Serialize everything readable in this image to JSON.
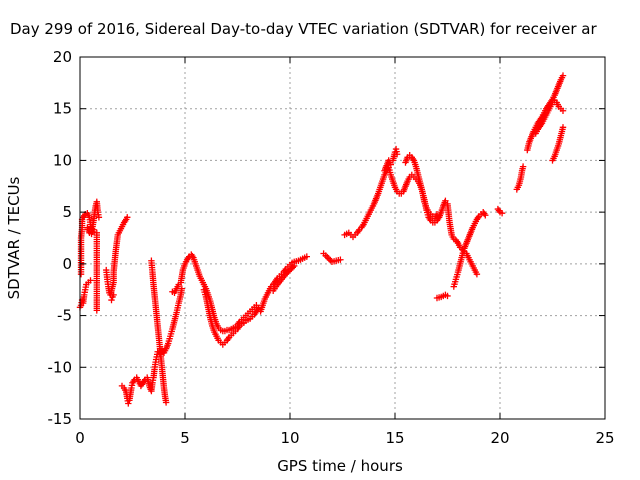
{
  "chart_data": {
    "type": "scatter",
    "title": "Day 299 of 2016, Sidereal Day-to-day VTEC variation (SDTVAR) for receiver ar",
    "xlabel": "GPS time / hours",
    "ylabel": "SDTVAR / TECUs",
    "xlim": [
      0,
      25
    ],
    "ylim": [
      -15,
      20
    ],
    "xticks": [
      0,
      5,
      10,
      15,
      20,
      25
    ],
    "yticks": [
      -15,
      -10,
      -5,
      0,
      5,
      10,
      15,
      20
    ],
    "grid": true,
    "marker": "+",
    "color": "#ff0000",
    "segments": [
      [
        [
          0.0,
          -4.2
        ],
        [
          0.05,
          -4.0
        ],
        [
          0.1,
          -3.5
        ],
        [
          0.15,
          -3.8
        ],
        [
          0.2,
          -3.0
        ],
        [
          0.25,
          -2.5
        ],
        [
          0.3,
          -2.0
        ],
        [
          0.4,
          -1.8
        ],
        [
          0.5,
          -1.6
        ]
      ],
      [
        [
          0.05,
          -1.0
        ],
        [
          0.05,
          1.0
        ],
        [
          0.05,
          2.5
        ],
        [
          0.1,
          3.5
        ],
        [
          0.1,
          4.3
        ]
      ],
      [
        [
          0.15,
          4.5
        ],
        [
          0.25,
          4.8
        ],
        [
          0.35,
          4.9
        ],
        [
          0.45,
          4.5
        ],
        [
          0.5,
          3.8
        ],
        [
          0.55,
          3.2
        ],
        [
          0.6,
          3.6
        ],
        [
          0.65,
          4.2
        ],
        [
          0.7,
          5.0
        ],
        [
          0.75,
          5.6
        ],
        [
          0.8,
          6.0
        ],
        [
          0.85,
          5.0
        ],
        [
          0.9,
          4.5
        ]
      ],
      [
        [
          0.35,
          3.5
        ],
        [
          0.45,
          3.0
        ],
        [
          0.55,
          2.9
        ],
        [
          0.65,
          3.3
        ]
      ],
      [
        [
          0.8,
          3.0
        ],
        [
          0.8,
          1.5
        ],
        [
          0.8,
          0.2
        ],
        [
          0.8,
          -1.0
        ],
        [
          0.8,
          -3.5
        ],
        [
          0.8,
          -4.5
        ]
      ],
      [
        [
          1.25,
          -0.6
        ],
        [
          1.3,
          -1.5
        ],
        [
          1.35,
          -2.2
        ],
        [
          1.4,
          -2.8
        ],
        [
          1.45,
          -3.0
        ],
        [
          1.5,
          -2.6
        ],
        [
          1.55,
          -2.2
        ],
        [
          1.6,
          -1.8
        ],
        [
          1.6,
          -0.8
        ],
        [
          1.65,
          0.2
        ],
        [
          1.7,
          1.2
        ],
        [
          1.75,
          2.0
        ],
        [
          1.8,
          2.8
        ],
        [
          1.9,
          3.2
        ],
        [
          2.0,
          3.6
        ],
        [
          2.1,
          4.0
        ],
        [
          2.2,
          4.3
        ],
        [
          2.25,
          4.5
        ]
      ],
      [
        [
          1.5,
          -3.5
        ],
        [
          1.55,
          -3.2
        ],
        [
          1.6,
          -3.0
        ]
      ],
      [
        [
          2.0,
          -11.8
        ],
        [
          2.1,
          -12.0
        ],
        [
          2.2,
          -12.4
        ],
        [
          2.25,
          -13.0
        ],
        [
          2.3,
          -13.5
        ],
        [
          2.35,
          -13.2
        ],
        [
          2.4,
          -12.6
        ],
        [
          2.45,
          -12.0
        ],
        [
          2.5,
          -11.5
        ],
        [
          2.6,
          -11.2
        ],
        [
          2.7,
          -11.0
        ],
        [
          2.8,
          -11.4
        ],
        [
          2.9,
          -11.8
        ],
        [
          3.0,
          -11.5
        ],
        [
          3.1,
          -11.2
        ],
        [
          3.2,
          -11.0
        ],
        [
          3.3,
          -11.8
        ],
        [
          3.4,
          -12.3
        ],
        [
          3.45,
          -11.5
        ],
        [
          3.5,
          -11.0
        ],
        [
          3.55,
          -10.2
        ],
        [
          3.6,
          -9.5
        ],
        [
          3.65,
          -9.0
        ],
        [
          3.7,
          -8.5
        ],
        [
          3.8,
          -8.7
        ],
        [
          3.9,
          -8.3
        ],
        [
          4.0,
          -8.6
        ],
        [
          4.1,
          -8.2
        ],
        [
          4.2,
          -7.7
        ],
        [
          4.3,
          -7.0
        ],
        [
          4.4,
          -6.3
        ],
        [
          4.5,
          -5.5
        ],
        [
          4.6,
          -4.7
        ],
        [
          4.7,
          -3.8
        ],
        [
          4.8,
          -3.0
        ],
        [
          4.85,
          -2.4
        ]
      ],
      [
        [
          3.4,
          0.3
        ],
        [
          3.45,
          -0.8
        ],
        [
          3.5,
          -2.0
        ],
        [
          3.55,
          -3.0
        ],
        [
          3.6,
          -4.0
        ],
        [
          3.65,
          -5.0
        ],
        [
          3.7,
          -6.0
        ],
        [
          3.75,
          -7.0
        ],
        [
          3.8,
          -8.0
        ],
        [
          3.85,
          -9.0
        ],
        [
          3.9,
          -10.0
        ],
        [
          3.95,
          -11.0
        ],
        [
          4.0,
          -12.0
        ],
        [
          4.05,
          -12.8
        ],
        [
          4.1,
          -13.4
        ]
      ],
      [
        [
          4.4,
          -2.7
        ],
        [
          4.5,
          -2.8
        ],
        [
          4.6,
          -2.4
        ],
        [
          4.7,
          -2.0
        ],
        [
          4.8,
          -1.8
        ],
        [
          4.9,
          -0.6
        ],
        [
          5.0,
          0.0
        ],
        [
          5.1,
          0.4
        ],
        [
          5.2,
          0.7
        ],
        [
          5.3,
          0.9
        ],
        [
          5.4,
          0.6
        ],
        [
          5.5,
          0.0
        ],
        [
          5.6,
          -0.6
        ],
        [
          5.7,
          -1.2
        ],
        [
          5.8,
          -1.6
        ],
        [
          5.9,
          -2.0
        ],
        [
          6.0,
          -2.4
        ],
        [
          6.1,
          -3.0
        ],
        [
          6.2,
          -3.6
        ],
        [
          6.3,
          -4.4
        ],
        [
          6.4,
          -5.2
        ],
        [
          6.5,
          -5.8
        ],
        [
          6.6,
          -6.2
        ],
        [
          6.7,
          -6.4
        ],
        [
          6.8,
          -6.5
        ],
        [
          6.9,
          -6.5
        ],
        [
          7.0,
          -6.4
        ],
        [
          7.1,
          -6.4
        ],
        [
          7.2,
          -6.3
        ],
        [
          7.3,
          -6.2
        ],
        [
          7.4,
          -6.1
        ],
        [
          7.5,
          -5.9
        ],
        [
          7.6,
          -5.6
        ],
        [
          7.7,
          -5.4
        ],
        [
          7.8,
          -5.2
        ],
        [
          7.9,
          -5.0
        ],
        [
          8.0,
          -4.8
        ],
        [
          8.1,
          -4.6
        ],
        [
          8.2,
          -4.4
        ],
        [
          8.3,
          -4.2
        ],
        [
          8.4,
          -4.0
        ]
      ],
      [
        [
          5.9,
          -2.5
        ],
        [
          6.0,
          -3.2
        ],
        [
          6.1,
          -4.2
        ],
        [
          6.2,
          -5.2
        ],
        [
          6.3,
          -6.0
        ],
        [
          6.4,
          -6.6
        ],
        [
          6.5,
          -7.0
        ],
        [
          6.6,
          -7.4
        ],
        [
          6.7,
          -7.6
        ],
        [
          6.8,
          -7.8
        ],
        [
          6.9,
          -7.6
        ],
        [
          7.0,
          -7.4
        ],
        [
          7.1,
          -7.1
        ],
        [
          7.2,
          -6.9
        ],
        [
          7.3,
          -6.7
        ],
        [
          7.4,
          -6.5
        ],
        [
          7.5,
          -6.3
        ],
        [
          7.6,
          -6.0
        ],
        [
          7.7,
          -5.8
        ],
        [
          7.8,
          -5.7
        ],
        [
          7.9,
          -5.5
        ],
        [
          8.0,
          -5.4
        ],
        [
          8.1,
          -5.3
        ],
        [
          8.2,
          -5.1
        ],
        [
          8.3,
          -4.9
        ],
        [
          8.4,
          -4.6
        ],
        [
          8.5,
          -4.3
        ]
      ],
      [
        [
          8.6,
          -4.6
        ],
        [
          8.7,
          -4.0
        ],
        [
          8.8,
          -3.4
        ],
        [
          8.9,
          -3.0
        ],
        [
          9.0,
          -2.6
        ],
        [
          9.1,
          -2.2
        ],
        [
          9.2,
          -2.0
        ],
        [
          9.3,
          -1.7
        ],
        [
          9.4,
          -1.4
        ],
        [
          9.5,
          -1.2
        ],
        [
          9.6,
          -1.0
        ],
        [
          9.7,
          -0.8
        ],
        [
          9.8,
          -0.5
        ],
        [
          9.9,
          -0.3
        ],
        [
          10.0,
          -0.1
        ],
        [
          10.1,
          0.1
        ],
        [
          10.2,
          0.2
        ],
        [
          10.4,
          0.3
        ],
        [
          10.6,
          0.5
        ],
        [
          10.8,
          0.7
        ]
      ],
      [
        [
          9.2,
          -2.6
        ],
        [
          9.4,
          -2.0
        ],
        [
          9.6,
          -1.5
        ],
        [
          9.8,
          -1.0
        ],
        [
          10.0,
          -0.6
        ],
        [
          10.2,
          -0.2
        ]
      ],
      [
        [
          11.6,
          1.0
        ],
        [
          11.7,
          0.8
        ],
        [
          12.0,
          0.2
        ],
        [
          12.2,
          0.3
        ],
        [
          12.4,
          0.4
        ]
      ],
      [
        [
          12.6,
          2.8
        ],
        [
          12.7,
          2.9
        ],
        [
          12.8,
          3.0
        ],
        [
          12.9,
          2.8
        ],
        [
          13.0,
          2.6
        ],
        [
          13.1,
          2.8
        ],
        [
          13.2,
          3.0
        ],
        [
          13.3,
          3.3
        ],
        [
          13.4,
          3.5
        ],
        [
          13.5,
          3.8
        ],
        [
          13.6,
          4.2
        ],
        [
          13.7,
          4.6
        ],
        [
          13.8,
          5.0
        ],
        [
          13.9,
          5.4
        ],
        [
          14.0,
          5.8
        ],
        [
          14.1,
          6.3
        ],
        [
          14.2,
          6.8
        ],
        [
          14.3,
          7.4
        ],
        [
          14.4,
          8.0
        ],
        [
          14.5,
          8.6
        ],
        [
          14.6,
          9.0
        ],
        [
          14.7,
          9.3
        ],
        [
          14.8,
          8.6
        ],
        [
          14.9,
          8.0
        ],
        [
          15.0,
          7.4
        ],
        [
          15.1,
          7.0
        ],
        [
          15.2,
          6.8
        ],
        [
          15.3,
          6.8
        ],
        [
          15.4,
          7.0
        ],
        [
          15.5,
          7.5
        ],
        [
          15.6,
          8.0
        ],
        [
          15.7,
          8.4
        ],
        [
          15.8,
          8.6
        ],
        [
          15.9,
          8.4
        ],
        [
          16.0,
          8.2
        ],
        [
          16.1,
          8.0
        ],
        [
          16.2,
          7.6
        ],
        [
          16.3,
          7.0
        ],
        [
          16.4,
          6.2
        ],
        [
          16.5,
          5.2
        ],
        [
          16.6,
          4.5
        ],
        [
          16.7,
          4.2
        ],
        [
          16.8,
          4.0
        ],
        [
          16.9,
          4.0
        ],
        [
          17.0,
          4.2
        ],
        [
          17.1,
          4.5
        ],
        [
          17.2,
          5.0
        ],
        [
          17.3,
          5.6
        ],
        [
          17.4,
          6.1
        ]
      ],
      [
        [
          14.5,
          9.0
        ],
        [
          14.6,
          9.5
        ],
        [
          14.7,
          10.0
        ],
        [
          14.8,
          9.6
        ]
      ],
      [
        [
          14.9,
          10.0
        ],
        [
          15.0,
          10.8
        ],
        [
          15.05,
          11.1
        ],
        [
          15.1,
          10.6
        ]
      ],
      [
        [
          15.5,
          9.8
        ],
        [
          15.6,
          10.3
        ],
        [
          15.7,
          10.5
        ],
        [
          15.8,
          10.3
        ],
        [
          15.9,
          10.0
        ],
        [
          16.0,
          9.4
        ],
        [
          16.1,
          8.6
        ],
        [
          16.2,
          7.8
        ],
        [
          16.3,
          7.0
        ],
        [
          16.4,
          6.0
        ],
        [
          16.5,
          5.4
        ],
        [
          16.6,
          5.0
        ],
        [
          16.7,
          4.8
        ],
        [
          16.8,
          4.6
        ],
        [
          16.9,
          4.4
        ],
        [
          17.0,
          4.8
        ]
      ],
      [
        [
          17.0,
          -3.3
        ],
        [
          17.2,
          -3.2
        ],
        [
          17.4,
          -3.0
        ],
        [
          17.5,
          -3.1
        ]
      ],
      [
        [
          17.5,
          5.8
        ],
        [
          17.6,
          4.0
        ],
        [
          17.7,
          2.8
        ],
        [
          17.8,
          2.4
        ],
        [
          17.9,
          2.3
        ],
        [
          18.0,
          2.0
        ],
        [
          18.1,
          1.6
        ],
        [
          18.2,
          1.4
        ],
        [
          18.3,
          1.2
        ],
        [
          18.4,
          1.0
        ],
        [
          18.5,
          0.6
        ],
        [
          18.6,
          0.2
        ],
        [
          18.7,
          -0.2
        ],
        [
          18.8,
          -0.6
        ],
        [
          18.9,
          -1.0
        ]
      ],
      [
        [
          17.8,
          -2.2
        ],
        [
          17.9,
          -1.5
        ],
        [
          18.0,
          -0.8
        ],
        [
          18.1,
          0.0
        ],
        [
          18.2,
          0.8
        ],
        [
          18.3,
          1.5
        ],
        [
          18.4,
          2.0
        ],
        [
          18.5,
          2.5
        ],
        [
          18.6,
          3.0
        ],
        [
          18.7,
          3.5
        ],
        [
          18.8,
          3.9
        ],
        [
          18.9,
          4.3
        ],
        [
          19.0,
          4.6
        ],
        [
          19.1,
          4.8
        ],
        [
          19.2,
          5.0
        ],
        [
          19.3,
          4.7
        ]
      ],
      [
        [
          19.9,
          5.3
        ],
        [
          20.0,
          5.0
        ],
        [
          20.1,
          4.9
        ]
      ],
      [
        [
          20.8,
          7.2
        ],
        [
          20.9,
          7.6
        ],
        [
          21.0,
          8.4
        ],
        [
          21.05,
          9.0
        ],
        [
          21.1,
          9.4
        ]
      ],
      [
        [
          21.3,
          11.0
        ],
        [
          21.4,
          11.8
        ],
        [
          21.5,
          12.3
        ],
        [
          21.6,
          12.8
        ],
        [
          21.7,
          13.2
        ],
        [
          21.8,
          13.6
        ],
        [
          21.9,
          13.9
        ],
        [
          22.0,
          14.2
        ],
        [
          22.1,
          14.6
        ],
        [
          22.2,
          15.0
        ],
        [
          22.3,
          15.3
        ],
        [
          22.4,
          15.6
        ],
        [
          22.5,
          15.9
        ],
        [
          22.6,
          16.3
        ],
        [
          22.7,
          16.8
        ],
        [
          22.8,
          17.3
        ],
        [
          22.9,
          17.8
        ],
        [
          23.0,
          18.2
        ]
      ],
      [
        [
          21.7,
          12.6
        ],
        [
          21.8,
          13.0
        ],
        [
          21.9,
          13.3
        ],
        [
          22.0,
          13.6
        ],
        [
          22.1,
          14.0
        ],
        [
          22.2,
          14.4
        ],
        [
          22.3,
          14.8
        ],
        [
          22.4,
          15.2
        ],
        [
          22.5,
          15.6
        ],
        [
          22.6,
          15.8
        ],
        [
          22.7,
          15.6
        ],
        [
          22.8,
          15.2
        ],
        [
          22.9,
          15.0
        ],
        [
          23.0,
          14.8
        ]
      ],
      [
        [
          22.5,
          10.0
        ],
        [
          22.6,
          10.4
        ],
        [
          22.7,
          11.0
        ],
        [
          22.8,
          11.6
        ],
        [
          22.9,
          12.4
        ],
        [
          23.0,
          13.2
        ]
      ]
    ]
  }
}
